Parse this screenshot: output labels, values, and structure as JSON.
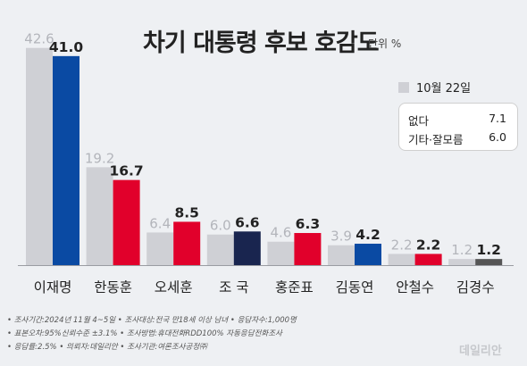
{
  "chart_data": {
    "type": "bar",
    "title": "차기 대통령 후보 호감도",
    "unit_label": "단위 %",
    "ylim": [
      0,
      45
    ],
    "categories": [
      "이재명",
      "한동훈",
      "오세훈",
      "조 국",
      "홍준표",
      "김동연",
      "안철수",
      "김경수"
    ],
    "series": [
      {
        "name": "10월 22일",
        "values": [
          42.6,
          19.2,
          6.4,
          6.0,
          4.6,
          3.9,
          2.2,
          1.2
        ],
        "color": "#cfd0d5",
        "label_color": "#b3b5bb"
      },
      {
        "name": "",
        "values": [
          41.0,
          16.7,
          8.5,
          6.6,
          6.3,
          4.2,
          2.2,
          1.2
        ],
        "colors": [
          "#0a4aa3",
          "#e1002b",
          "#e1002b",
          "#19254f",
          "#e1002b",
          "#0a4aa3",
          "#e1002b",
          "#555555"
        ],
        "label_color": "#222222"
      }
    ],
    "legend": {
      "position": "top-right"
    },
    "note_box": [
      {
        "label": "없다",
        "value": "7.1"
      },
      {
        "label": "기타·잘모름",
        "value": "6.0"
      }
    ]
  },
  "footnotes": [
    "• 조사기간:2024년 11월 4~5일  • 조사대상:전국 만18세 이상 남녀  • 응답자수:1,000명",
    "• 표본오차:95%신뢰수준  ±3.1%  • 조사방법:휴대전화RDD100% 자동응답전화조사",
    "• 응답률:2.5%  • 의뢰자:데일리안  • 조사기관:여론조사공정㈜"
  ],
  "watermark": "데일리안"
}
